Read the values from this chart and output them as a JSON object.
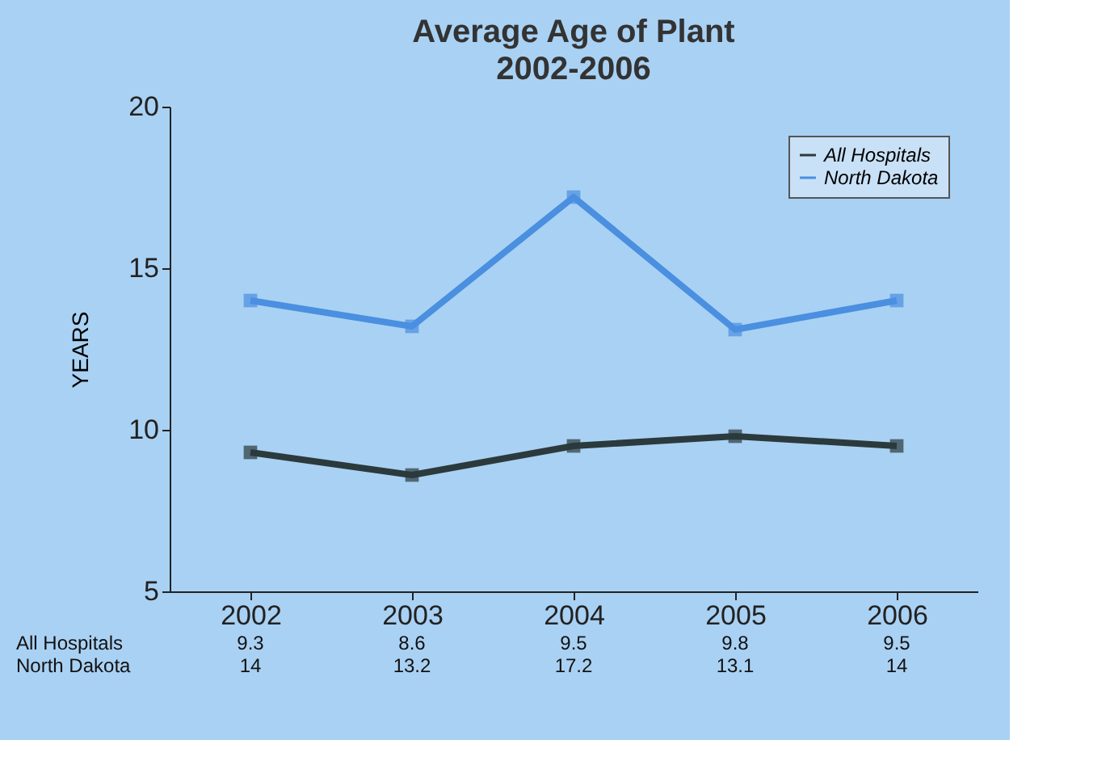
{
  "chart_data": {
    "type": "line",
    "title": "Average Age of Plant",
    "subtitle": "2002-2006",
    "ylabel": "YEARS",
    "categories": [
      "2002",
      "2003",
      "2004",
      "2005",
      "2006"
    ],
    "series": [
      {
        "name": "All Hospitals",
        "color": "#2b3a3c",
        "values": [
          9.3,
          8.6,
          9.5,
          9.8,
          9.5
        ]
      },
      {
        "name": "North Dakota",
        "color": "#4a8fe0",
        "values": [
          14,
          13.2,
          17.2,
          13.1,
          14
        ]
      }
    ],
    "ylim": [
      5,
      20
    ],
    "yticks": [
      5,
      10,
      15,
      20
    ],
    "grid": false,
    "legend": "top right",
    "marker": "square",
    "line_style": "solid",
    "data_labels": true
  }
}
